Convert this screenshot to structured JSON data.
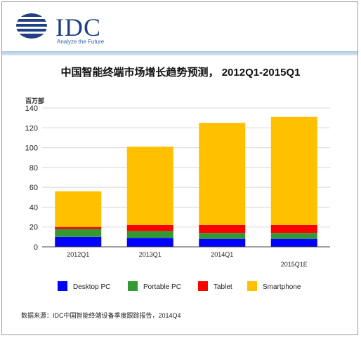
{
  "header": {
    "logo_text": "IDC",
    "logo_tagline": "Analyze the Future"
  },
  "chart_data": {
    "type": "bar",
    "stacked": true,
    "title": "中国智能终端市场增长趋势预测， 2012Q1-2015Q1",
    "ylabel": "百万部",
    "xlabel": "",
    "ylim": [
      0,
      140
    ],
    "yticks": [
      0,
      20,
      40,
      60,
      80,
      100,
      120,
      140
    ],
    "categories": [
      "2012Q1",
      "2013Q1",
      "2014Q1",
      "2015Q1E"
    ],
    "series": [
      {
        "name": "Desktop PC",
        "color": "#0000ff",
        "values": [
          10,
          9,
          8,
          8
        ]
      },
      {
        "name": "Portable PC",
        "color": "#339933",
        "values": [
          8,
          7,
          6,
          6
        ]
      },
      {
        "name": "Tablet",
        "color": "#ff0000",
        "values": [
          2,
          6,
          8,
          8
        ]
      },
      {
        "name": "Smartphone",
        "color": "#ffc000",
        "values": [
          36,
          79,
          103,
          109
        ]
      }
    ],
    "grid": true,
    "legend_position": "bottom"
  },
  "source": {
    "text": "数据来源：IDC中国智能终端设备季度跟踪报告，2014Q4"
  }
}
